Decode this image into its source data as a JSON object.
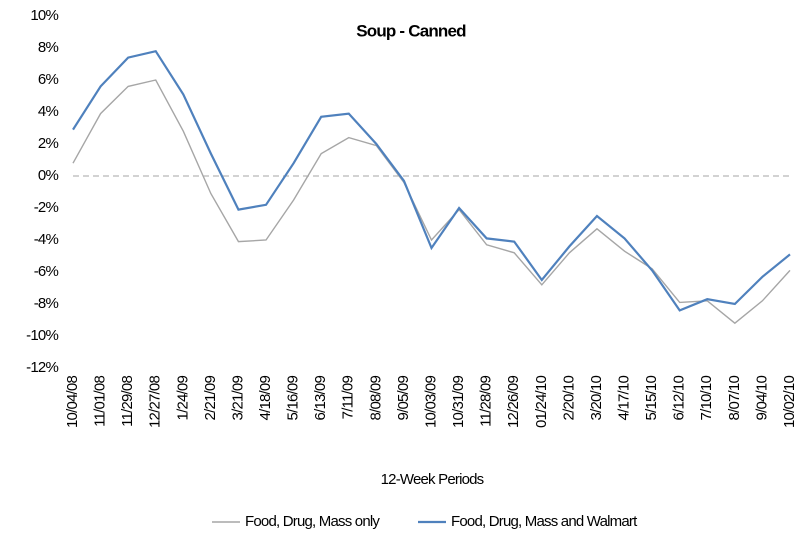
{
  "chart_data": {
    "type": "line",
    "title": "Soup - Canned",
    "x_label": "12-Week Periods",
    "categories": [
      "10/04/08",
      "11/01/08",
      "11/29/08",
      "12/27/08",
      "1/24/09",
      "2/21/09",
      "3/21/09",
      "4/18/09",
      "5/16/09",
      "6/13/09",
      "7/11/09",
      "8/08/09",
      "9/05/09",
      "10/03/09",
      "10/31/09",
      "11/28/09",
      "12/26/09",
      "01/24/10",
      "2/20/10",
      "3/20/10",
      "4/17/10",
      "5/15/10",
      "6/12/10",
      "7/10/10",
      "8/07/10",
      "9/04/10",
      "10/02/10"
    ],
    "series": [
      {
        "name": "Food, Drug, Mass only",
        "color": "#a6a6a6",
        "values": [
          0.8,
          3.9,
          5.6,
          6.0,
          2.8,
          -1.1,
          -4.1,
          -4.0,
          -1.5,
          1.4,
          2.4,
          1.9,
          -0.4,
          -4.0,
          -2.1,
          -4.3,
          -4.8,
          -6.8,
          -4.8,
          -3.3,
          -4.7,
          -5.8,
          -7.9,
          -7.8,
          -9.2,
          -7.8,
          -5.9
        ]
      },
      {
        "name": "Food, Drug, Mass and Walmart",
        "color": "#4f81bd",
        "values": [
          2.9,
          5.6,
          7.4,
          7.8,
          5.1,
          1.4,
          -2.1,
          -1.8,
          0.8,
          3.7,
          3.9,
          2.0,
          -0.3,
          -4.5,
          -2.0,
          -3.9,
          -4.1,
          -6.5,
          -4.4,
          -2.5,
          -3.9,
          -5.9,
          -8.4,
          -7.7,
          -8.0,
          -6.3,
          -4.9
        ]
      }
    ],
    "ylim": [
      -12,
      10
    ],
    "yticks": [
      {
        "value": -12,
        "label": "-12%"
      },
      {
        "value": -10,
        "label": "-10%"
      },
      {
        "value": -8,
        "label": "-8%"
      },
      {
        "value": -6,
        "label": "-6%"
      },
      {
        "value": -4,
        "label": "-4%"
      },
      {
        "value": -2,
        "label": "-2%"
      },
      {
        "value": 0,
        "label": "0%"
      },
      {
        "value": 2,
        "label": "2%"
      },
      {
        "value": 4,
        "label": "4%"
      },
      {
        "value": 6,
        "label": "6%"
      },
      {
        "value": 8,
        "label": "8%"
      },
      {
        "value": 10,
        "label": "10%"
      }
    ],
    "legend": "bottom"
  }
}
